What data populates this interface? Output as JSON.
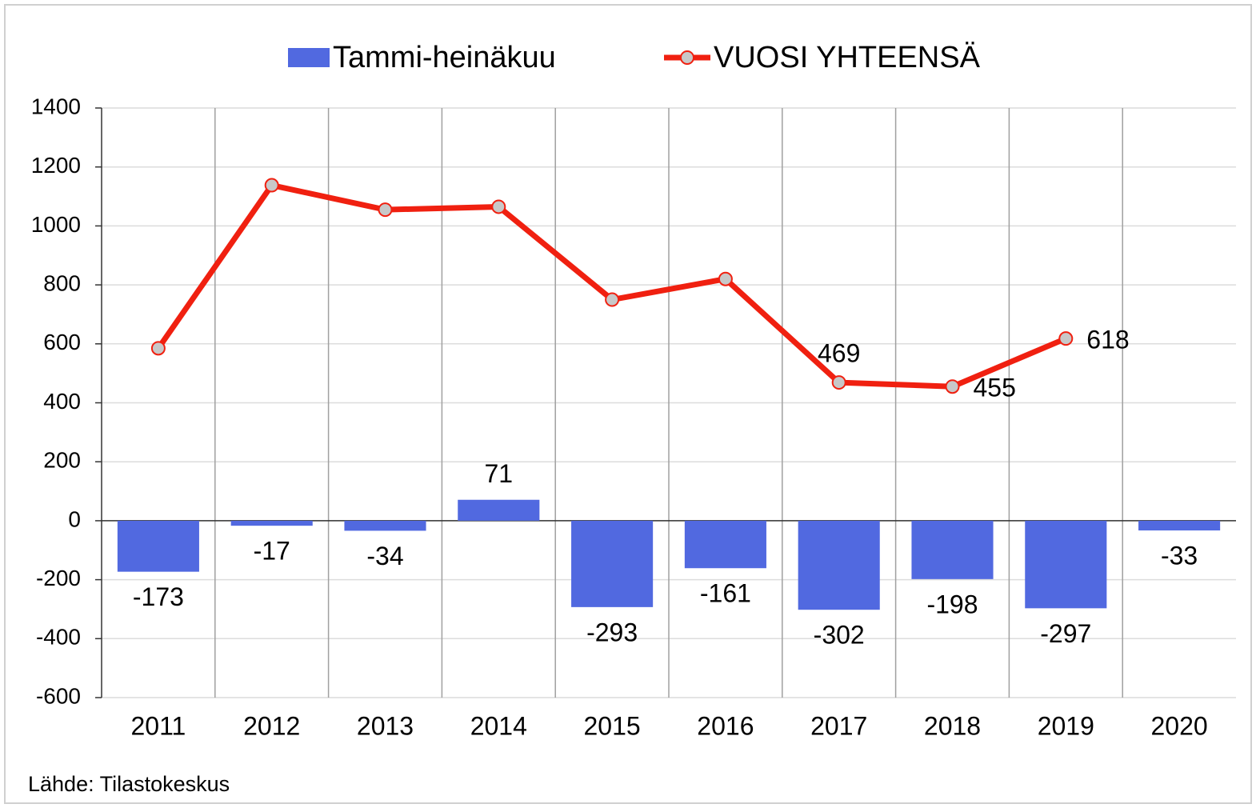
{
  "chart_data": {
    "type": "bar-line",
    "categories": [
      "2011",
      "2012",
      "2013",
      "2014",
      "2015",
      "2016",
      "2017",
      "2018",
      "2019",
      "2020"
    ],
    "series": [
      {
        "name": "Tammi-heinäkuu",
        "type": "bar",
        "color": "#5169e0",
        "values": [
          -173,
          -17,
          -34,
          71,
          -293,
          -161,
          -302,
          -198,
          -297,
          -33
        ]
      },
      {
        "name": "VUOSI YHTEENSÄ",
        "type": "line",
        "color": "#f02010",
        "values": [
          585,
          1138,
          1055,
          1065,
          750,
          820,
          469,
          455,
          618,
          null
        ],
        "value_labels": [
          null,
          null,
          null,
          null,
          null,
          null,
          "469",
          "455",
          "618",
          null
        ]
      }
    ],
    "ylim": [
      -600,
      1400
    ],
    "yticks": [
      -600,
      -400,
      -200,
      0,
      200,
      400,
      600,
      800,
      1000,
      1200,
      1400
    ],
    "grid": true,
    "legend": "top",
    "source": "Lähde: Tilastokeskus"
  }
}
